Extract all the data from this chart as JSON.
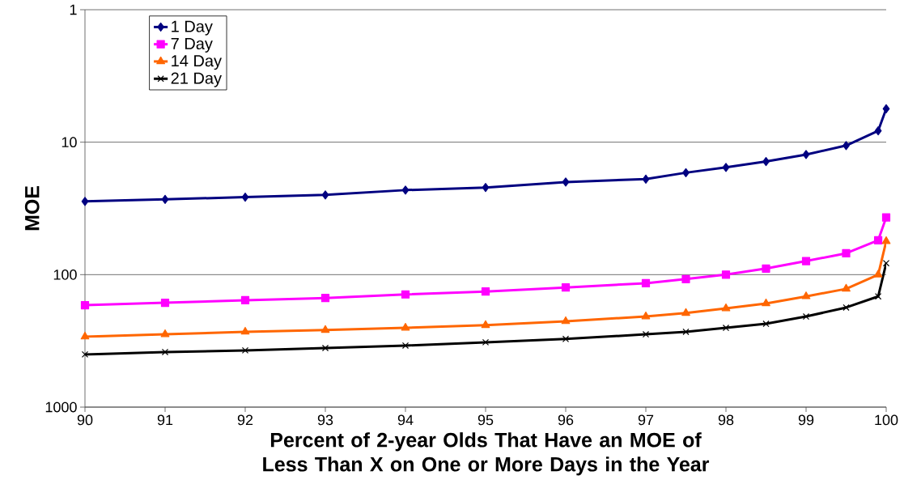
{
  "chart_data": {
    "type": "line",
    "xlabel": "Percent of 2-year Olds That Have an MOE of Less Than X on One or More Days in the Year",
    "ylabel": "MOE",
    "x": [
      90,
      91,
      92,
      93,
      94,
      95,
      96,
      97,
      97.5,
      98,
      98.5,
      99,
      99.5,
      99.9,
      100
    ],
    "series": [
      {
        "name": "1 Day",
        "color": "#000080",
        "marker": "diamond",
        "values": [
          28,
          27,
          26,
          25,
          23,
          22,
          20,
          19,
          17,
          15.5,
          14,
          12.4,
          10.6,
          8.2,
          5.6
        ]
      },
      {
        "name": "7 Day",
        "color": "#ff00ff",
        "marker": "square",
        "values": [
          170,
          163,
          156,
          150,
          141,
          134,
          125,
          116,
          108,
          100,
          90,
          79,
          69,
          55,
          37
        ]
      },
      {
        "name": "14 Day",
        "color": "#ff6600",
        "marker": "triangle",
        "values": [
          294,
          282,
          270,
          262,
          252,
          241,
          225,
          207,
          195,
          180,
          165,
          146,
          128,
          100,
          56
        ]
      },
      {
        "name": "21 Day",
        "color": "#000000",
        "marker": "cross",
        "values": [
          400,
          384,
          373,
          358,
          343,
          324,
          306,
          282,
          270,
          252,
          235,
          207,
          177,
          146,
          82
        ]
      }
    ],
    "xlim": [
      90,
      100
    ],
    "xticks": [
      90,
      91,
      92,
      93,
      94,
      95,
      96,
      97,
      98,
      99,
      100
    ],
    "ylim": [
      1000,
      1
    ],
    "yticks": [
      1,
      10,
      100,
      1000
    ],
    "log": "y",
    "grid": "y",
    "legend": "top left",
    "line_style": "solid"
  }
}
